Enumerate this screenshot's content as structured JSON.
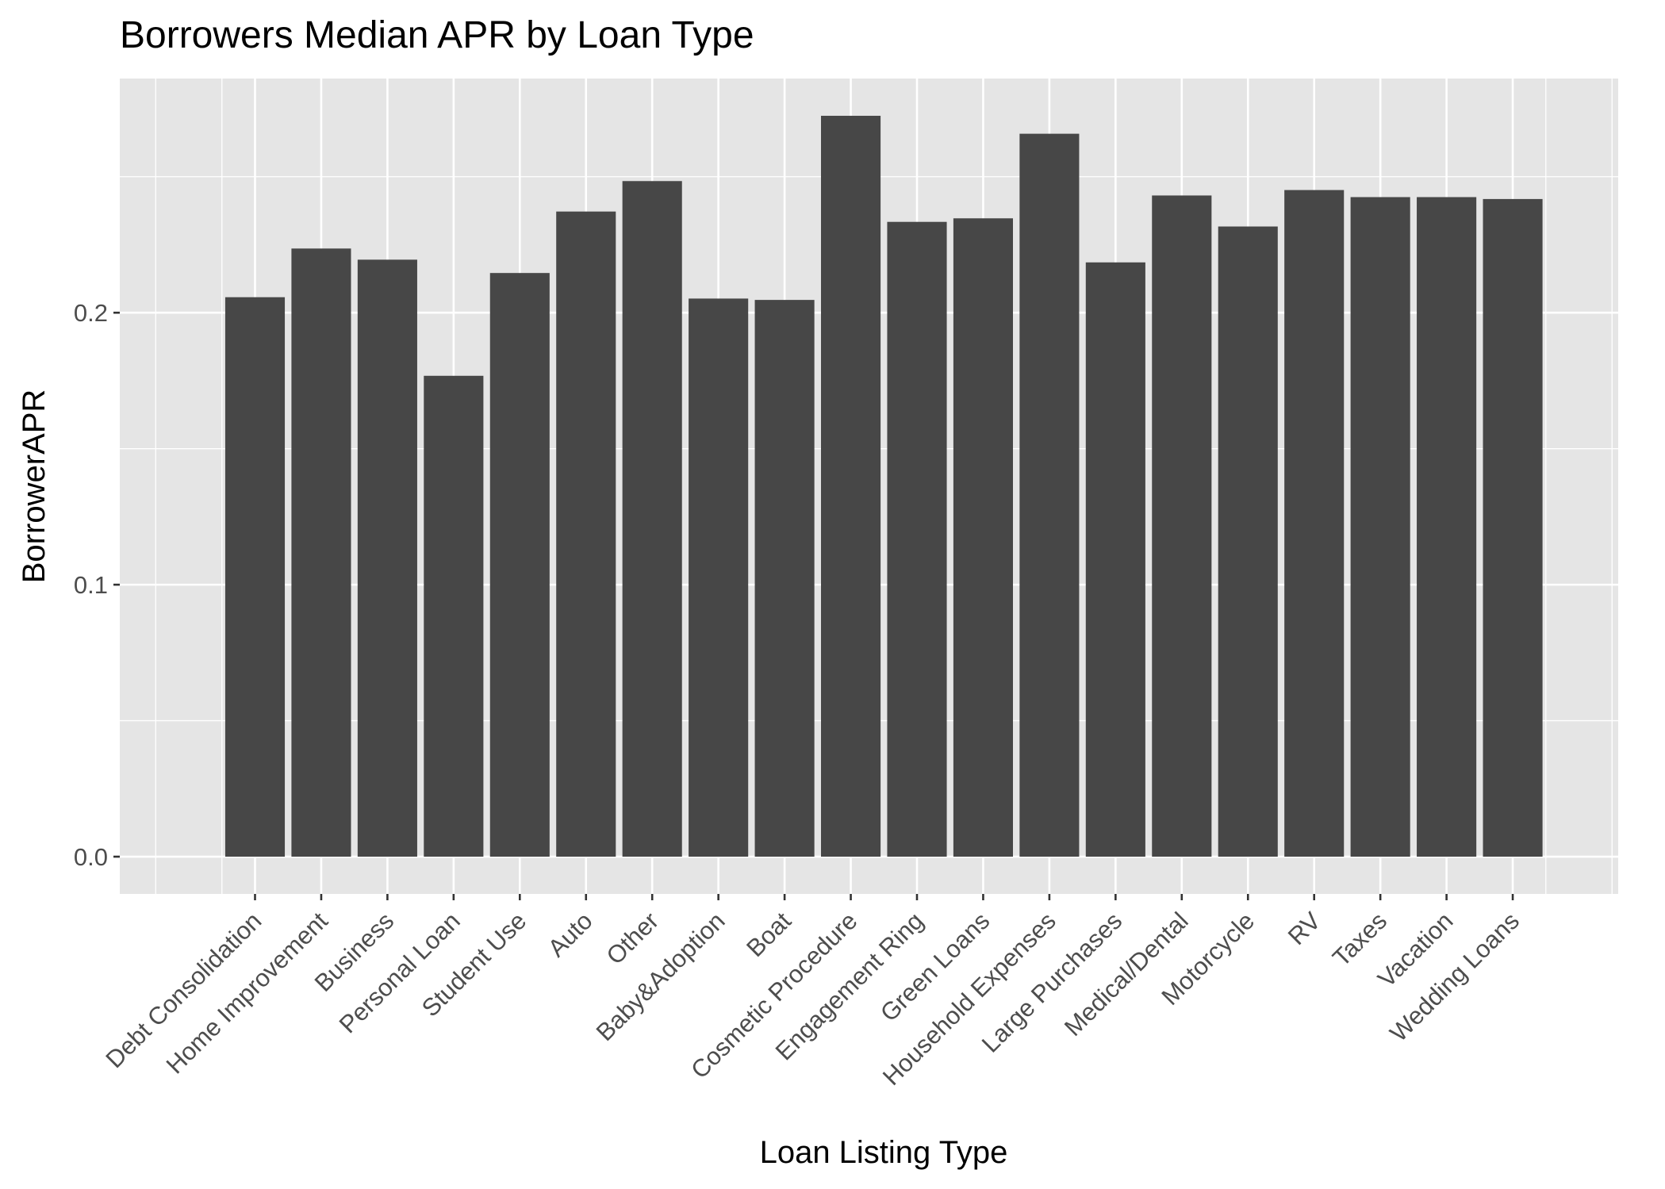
{
  "chart_data": {
    "type": "bar",
    "title": "Borrowers Median APR by Loan Type",
    "xlabel": "Loan Listing Type",
    "ylabel": "BorrowerAPR",
    "categories": [
      "Debt Consolidation",
      "Home Improvement",
      "Business",
      "Personal Loan",
      "Student Use",
      "Auto",
      "Other",
      "Baby&Adoption",
      "Boat",
      "Cosmetic Procedure",
      "Engagement Ring",
      "Green Loans",
      "Household Expenses",
      "Large Purchases",
      "Medical/Dental",
      "Motorcycle",
      "RV",
      "Taxes",
      "Vacation",
      "Wedding Loans"
    ],
    "values": [
      0.2057,
      0.2236,
      0.2195,
      0.1768,
      0.2146,
      0.2372,
      0.2484,
      0.2052,
      0.2047,
      0.2724,
      0.2334,
      0.2347,
      0.2658,
      0.2185,
      0.2431,
      0.2317,
      0.2451,
      0.2425,
      0.2425,
      0.2418
    ],
    "yticks": [
      0.0,
      0.1,
      0.2
    ],
    "ytick_labels": [
      "0.0",
      "0.1",
      "0.2"
    ],
    "ylim": [
      -0.0137,
      0.2861
    ],
    "grid": true,
    "legend": "none",
    "colors": {
      "bar": "#474747",
      "panel": "#e5e5e5",
      "grid": "#ffffff",
      "tick": "#4d4d4d",
      "text": "#000000"
    }
  }
}
